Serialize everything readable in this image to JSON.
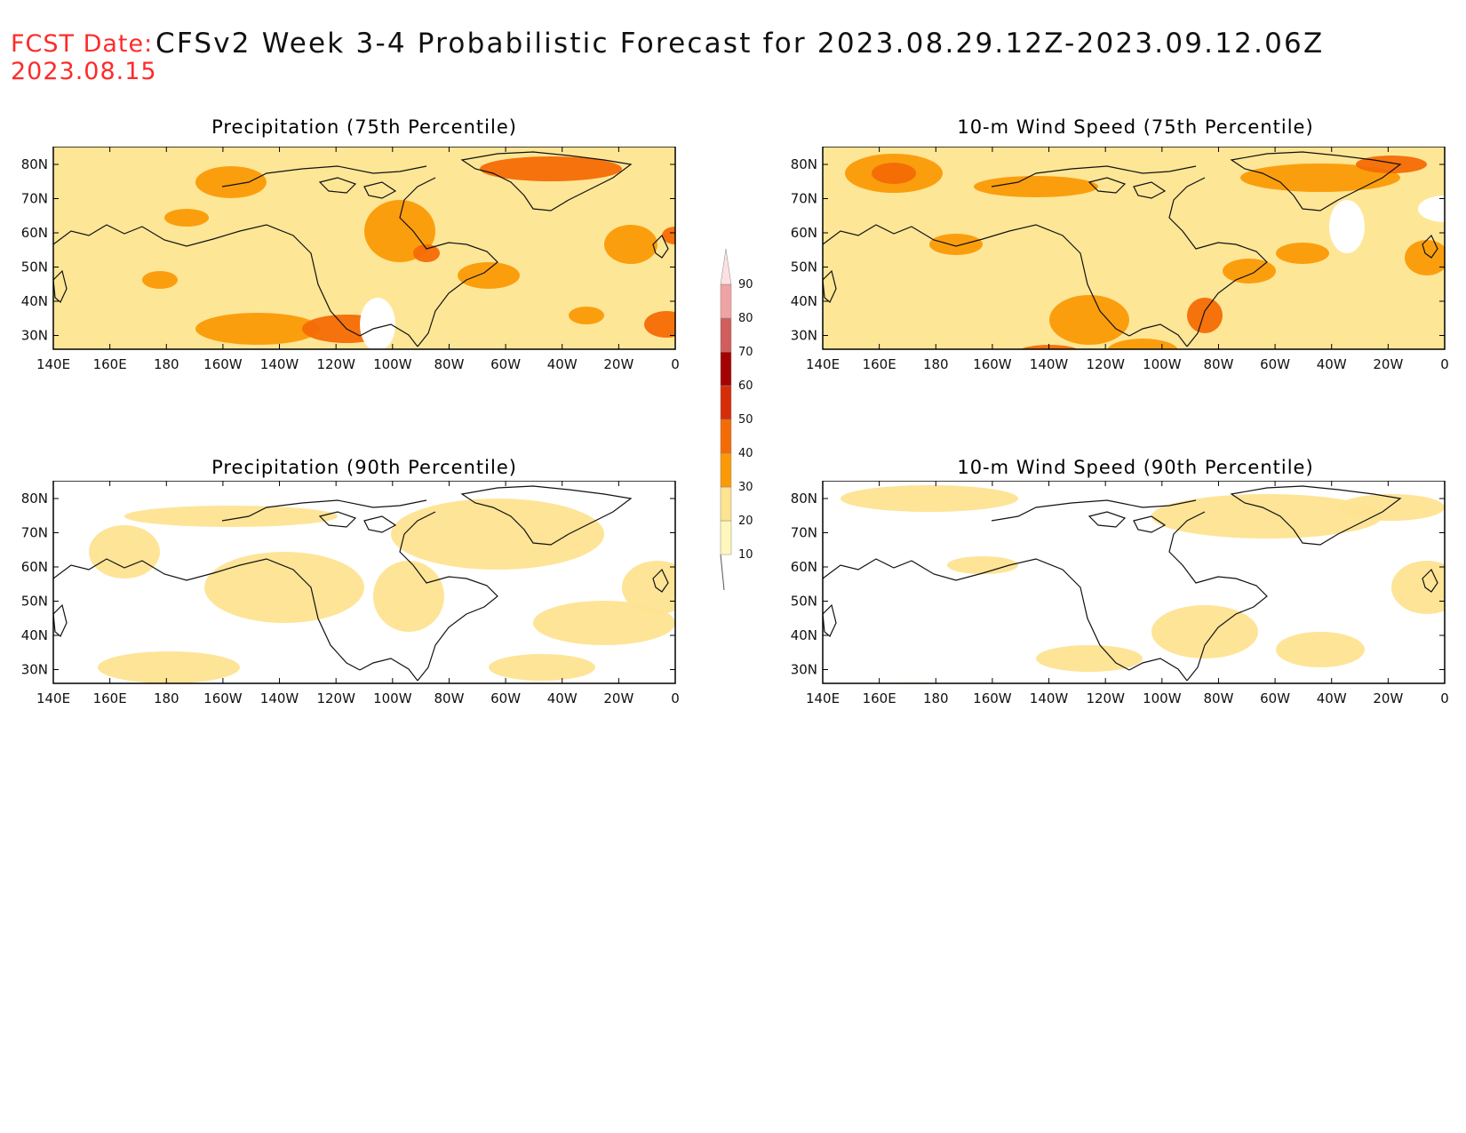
{
  "header": {
    "fcst_label": "FCST Date:",
    "fcst_date": "2023.08.15",
    "title": "CFSv2 Week 3-4 Probabilistic Forecast for 2023.08.29.12Z-2023.09.12.06Z"
  },
  "axes": {
    "lat_labels": [
      "80N",
      "70N",
      "60N",
      "50N",
      "40N",
      "30N"
    ],
    "lon_labels": [
      "140E",
      "160E",
      "180",
      "160W",
      "140W",
      "120W",
      "100W",
      "80W",
      "60W",
      "40W",
      "20W",
      "0"
    ]
  },
  "panels": [
    {
      "title": "Precipitation (75th Percentile)",
      "variable": "precipitation",
      "percentile": 75
    },
    {
      "title": "10-m Wind Speed (75th Percentile)",
      "variable": "wind",
      "percentile": 75
    },
    {
      "title": "Precipitation (90th Percentile)",
      "variable": "precipitation",
      "percentile": 90
    },
    {
      "title": "10-m Wind Speed (90th Percentile)",
      "variable": "wind",
      "percentile": 90
    }
  ],
  "colorbar": {
    "levels": [
      "10",
      "20",
      "30",
      "40",
      "50",
      "60",
      "70",
      "80",
      "90"
    ],
    "colors": [
      "#fff7bc",
      "#fee391",
      "#fb9a06",
      "#f46b05",
      "#d62d09",
      "#a50303",
      "#d15d5d",
      "#f0a3a3",
      "#fde1e1"
    ]
  }
}
